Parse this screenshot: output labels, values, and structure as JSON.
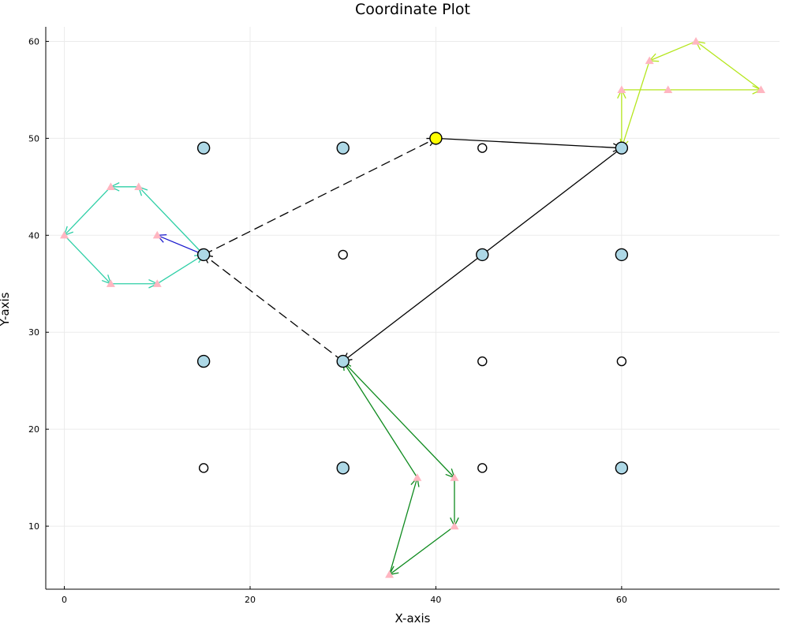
{
  "chart_data": {
    "type": "scatter",
    "title": "Coordinate Plot",
    "xlabel": "X-axis",
    "ylabel": "Y-axis",
    "xlim": [
      -2,
      77
    ],
    "ylim": [
      3.5,
      61.5
    ],
    "xticks": [
      0,
      20,
      40,
      60
    ],
    "yticks": [
      10,
      20,
      30,
      40,
      50,
      60
    ],
    "grid": true,
    "legend": "none",
    "colors": {
      "grid": "#ebebeb",
      "large_node": "#add8e6",
      "highlight_node": "#ffff00",
      "small_node": "#ffffff",
      "waypoint": "#ffb6c1",
      "main_path": "#000000",
      "teal_path": "#2ecfa6",
      "blue_arrow": "#1a1acd",
      "green_path": "#0e8a1e",
      "lime_path": "#b5e61d"
    },
    "large_nodes": [
      {
        "x": 15,
        "y": 49
      },
      {
        "x": 30,
        "y": 49
      },
      {
        "x": 60,
        "y": 49
      },
      {
        "x": 15,
        "y": 38
      },
      {
        "x": 45,
        "y": 38
      },
      {
        "x": 60,
        "y": 38
      },
      {
        "x": 15,
        "y": 27
      },
      {
        "x": 30,
        "y": 27
      },
      {
        "x": 30,
        "y": 16
      },
      {
        "x": 60,
        "y": 16
      }
    ],
    "highlight_nodes": [
      {
        "x": 40,
        "y": 50
      }
    ],
    "small_nodes": [
      {
        "x": 45,
        "y": 49
      },
      {
        "x": 30,
        "y": 38
      },
      {
        "x": 45,
        "y": 27
      },
      {
        "x": 60,
        "y": 27
      },
      {
        "x": 15,
        "y": 16
      },
      {
        "x": 45,
        "y": 16
      }
    ],
    "waypoints": [
      {
        "x": 5,
        "y": 45
      },
      {
        "x": 8,
        "y": 45
      },
      {
        "x": 0,
        "y": 40
      },
      {
        "x": 10,
        "y": 40
      },
      {
        "x": 5,
        "y": 35
      },
      {
        "x": 10,
        "y": 35
      },
      {
        "x": 38,
        "y": 15
      },
      {
        "x": 42,
        "y": 15
      },
      {
        "x": 42,
        "y": 10
      },
      {
        "x": 35,
        "y": 5
      },
      {
        "x": 60,
        "y": 55
      },
      {
        "x": 65,
        "y": 55
      },
      {
        "x": 75,
        "y": 55
      },
      {
        "x": 63,
        "y": 58
      },
      {
        "x": 68,
        "y": 60
      }
    ],
    "arrows": [
      {
        "from": [
          15,
          38
        ],
        "to": [
          40,
          50
        ],
        "color": "main_path",
        "dashed": true
      },
      {
        "from": [
          30,
          27
        ],
        "to": [
          15,
          38
        ],
        "color": "main_path",
        "dashed": true
      },
      {
        "from": [
          40,
          50
        ],
        "to": [
          60,
          49
        ],
        "color": "main_path",
        "dashed": false
      },
      {
        "from": [
          60,
          49
        ],
        "to": [
          30,
          27
        ],
        "color": "main_path",
        "dashed": false
      },
      {
        "from": [
          15,
          38
        ],
        "to": [
          10,
          40
        ],
        "color": "blue_arrow",
        "dashed": false
      },
      {
        "from": [
          15,
          38
        ],
        "to": [
          8,
          45
        ],
        "color": "teal_path",
        "dashed": false
      },
      {
        "from": [
          8,
          45
        ],
        "to": [
          5,
          45
        ],
        "color": "teal_path",
        "dashed": false
      },
      {
        "from": [
          5,
          45
        ],
        "to": [
          0,
          40
        ],
        "color": "teal_path",
        "dashed": false
      },
      {
        "from": [
          0,
          40
        ],
        "to": [
          5,
          35
        ],
        "color": "teal_path",
        "dashed": false
      },
      {
        "from": [
          5,
          35
        ],
        "to": [
          10,
          35
        ],
        "color": "teal_path",
        "dashed": false
      },
      {
        "from": [
          10,
          35
        ],
        "to": [
          15,
          38
        ],
        "color": "teal_path",
        "dashed": false
      },
      {
        "from": [
          30,
          27
        ],
        "to": [
          42,
          15
        ],
        "color": "green_path",
        "dashed": false
      },
      {
        "from": [
          42,
          15
        ],
        "to": [
          42,
          10
        ],
        "color": "green_path",
        "dashed": false
      },
      {
        "from": [
          42,
          10
        ],
        "to": [
          35,
          5
        ],
        "color": "green_path",
        "dashed": false
      },
      {
        "from": [
          35,
          5
        ],
        "to": [
          38,
          15
        ],
        "color": "green_path",
        "dashed": false
      },
      {
        "from": [
          38,
          15
        ],
        "to": [
          30,
          27
        ],
        "color": "green_path",
        "dashed": false
      },
      {
        "from": [
          60,
          49
        ],
        "to": [
          60,
          55
        ],
        "color": "lime_path",
        "dashed": false
      },
      {
        "from": [
          60,
          55
        ],
        "to": [
          75,
          55
        ],
        "color": "lime_path",
        "dashed": false
      },
      {
        "from": [
          75,
          55
        ],
        "to": [
          68,
          60
        ],
        "color": "lime_path",
        "dashed": false
      },
      {
        "from": [
          68,
          60
        ],
        "to": [
          63,
          58
        ],
        "color": "lime_path",
        "dashed": false
      },
      {
        "from": [
          63,
          58
        ],
        "to": [
          60,
          49
        ],
        "color": "lime_path",
        "dashed": false
      }
    ]
  }
}
